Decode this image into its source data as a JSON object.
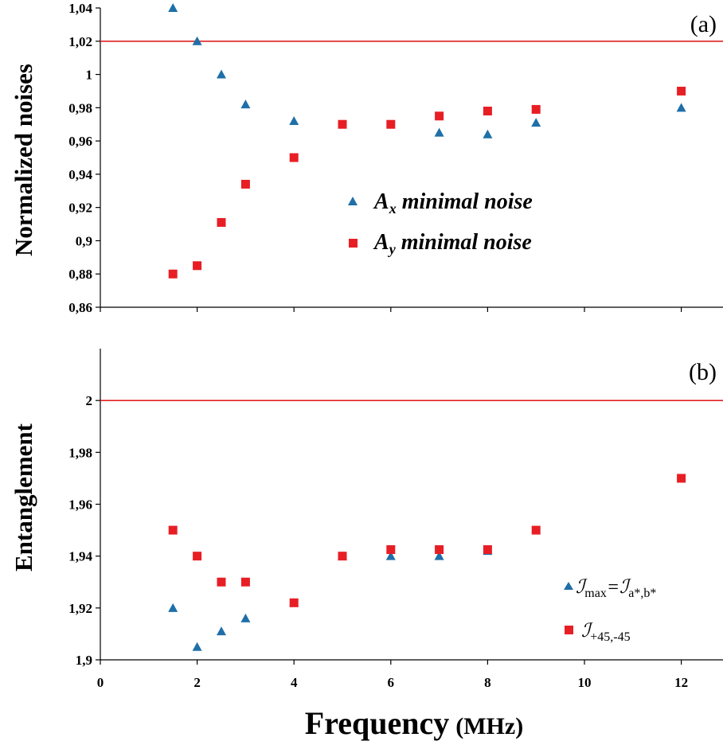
{
  "chart_data": [
    {
      "panel": "(a)",
      "type": "scatter",
      "ylabel": "Normalized noises",
      "ylim": [
        0.86,
        1.04
      ],
      "yticks": [
        "0,86",
        "0,88",
        "0,9",
        "0,92",
        "0,94",
        "0,96",
        "0,98",
        "1",
        "1,02",
        "1,04"
      ],
      "xlim": [
        0,
        13
      ],
      "reference_line": 1.02,
      "grid": false,
      "legend_position": "center",
      "series": [
        {
          "name_main": "A",
          "name_sub": "x",
          "name_rest": " minimal noise",
          "marker": "triangle",
          "color": "#1f6fa8",
          "points": [
            [
              1.5,
              1.04
            ],
            [
              2,
              1.02
            ],
            [
              2.5,
              1.0
            ],
            [
              3,
              0.982
            ],
            [
              4,
              0.972
            ],
            [
              7,
              0.965
            ],
            [
              8,
              0.964
            ],
            [
              9,
              0.971
            ],
            [
              12,
              0.98
            ]
          ]
        },
        {
          "name_main": "A",
          "name_sub": "y",
          "name_rest": " minimal noise",
          "marker": "square",
          "color": "#e81e25",
          "points": [
            [
              1.5,
              0.88
            ],
            [
              2,
              0.885
            ],
            [
              2.5,
              0.911
            ],
            [
              3,
              0.934
            ],
            [
              4,
              0.95
            ],
            [
              5,
              0.97
            ],
            [
              6,
              0.97
            ],
            [
              7,
              0.975
            ],
            [
              8,
              0.978
            ],
            [
              9,
              0.979
            ],
            [
              12,
              0.99
            ]
          ]
        }
      ]
    },
    {
      "panel": "(b)",
      "type": "scatter",
      "ylabel": "Entanglement",
      "ylim": [
        1.9,
        2.02
      ],
      "yticks": [
        "1,9",
        "1,92",
        "1,94",
        "1,96",
        "1,98",
        "2"
      ],
      "xlim": [
        0,
        13
      ],
      "xlabel_main": "Frequency",
      "xlabel_unit": "(MHz)",
      "xticks": [
        "0",
        "2",
        "4",
        "6",
        "8",
        "10",
        "12"
      ],
      "reference_line": 2.0,
      "grid": false,
      "legend_position": "bottom-right",
      "series": [
        {
          "name_main": "ℐ",
          "name_sub": "max",
          "name_rest": "=ℐ",
          "name_sub2": "a*,b*",
          "marker": "triangle",
          "color": "#1f6fa8",
          "points": [
            [
              1.5,
              1.92
            ],
            [
              2,
              1.905
            ],
            [
              2.5,
              1.911
            ],
            [
              3,
              1.916
            ],
            [
              4,
              1.922
            ],
            [
              5,
              1.94
            ],
            [
              6,
              1.94
            ],
            [
              7,
              1.94
            ],
            [
              8,
              1.942
            ]
          ]
        },
        {
          "name_main": "ℐ",
          "name_sub": "+45,-45",
          "marker": "square",
          "color": "#e81e25",
          "points": [
            [
              1.5,
              1.95
            ],
            [
              2,
              1.94
            ],
            [
              2.5,
              1.93
            ],
            [
              3,
              1.93
            ],
            [
              4,
              1.922
            ],
            [
              5,
              1.94
            ],
            [
              6,
              1.9425
            ],
            [
              7,
              1.9425
            ],
            [
              8,
              1.9425
            ],
            [
              9,
              1.95
            ],
            [
              12,
              1.97
            ]
          ]
        }
      ]
    }
  ]
}
